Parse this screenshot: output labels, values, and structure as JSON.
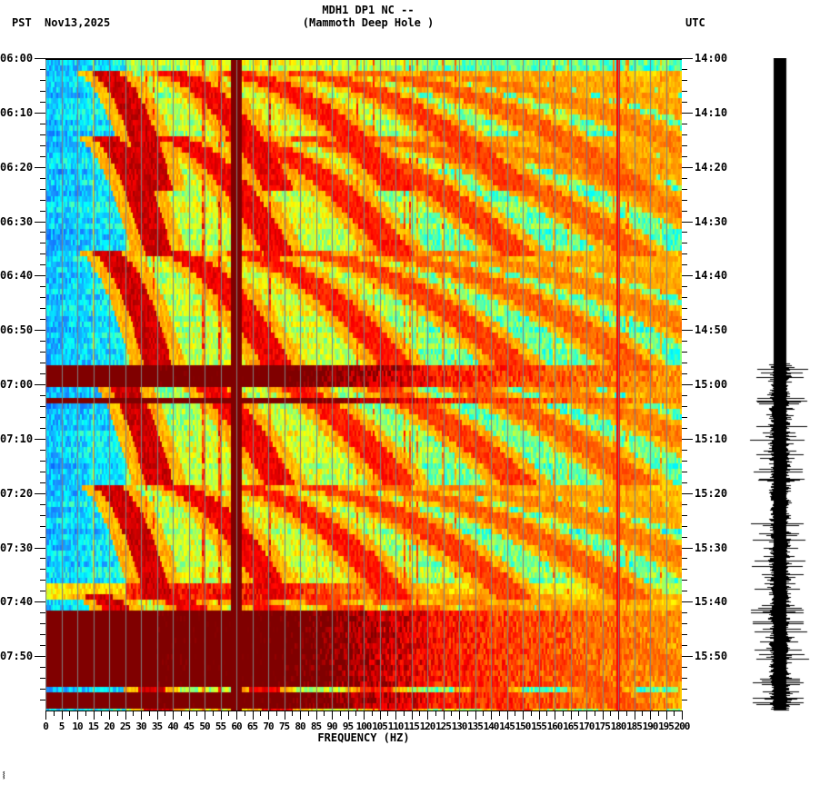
{
  "header": {
    "station_line": "MDH1 DP1 NC --",
    "location_line": "(Mammoth Deep Hole )",
    "left_timezone": "PST",
    "date": "Nov13,2025",
    "right_timezone": "UTC"
  },
  "footer": {
    "corner_mark": "⸾"
  },
  "colors": {
    "background": "#ffffff",
    "axis": "#000000",
    "gridline": "#808080",
    "colormap": [
      "#0050ff",
      "#1a8cff",
      "#00ffff",
      "#80ff80",
      "#ffff00",
      "#ff8000",
      "#ff0000",
      "#800000"
    ]
  },
  "chart_data": {
    "type": "heatmap",
    "title": "MDH1 DP1 NC -- (Mammoth Deep Hole )",
    "subtitle": "Nov13,2025",
    "xlabel": "FREQUENCY (HZ)",
    "ylabel_left": "PST",
    "ylabel_right": "UTC",
    "xlim": [
      0,
      200
    ],
    "x_ticks": [
      0,
      5,
      10,
      15,
      20,
      25,
      30,
      35,
      40,
      45,
      50,
      55,
      60,
      65,
      70,
      75,
      80,
      85,
      90,
      95,
      100,
      105,
      110,
      115,
      120,
      125,
      130,
      135,
      140,
      145,
      150,
      155,
      160,
      165,
      170,
      175,
      180,
      185,
      190,
      195,
      200
    ],
    "y_ticks_left": [
      "06:00",
      "06:10",
      "06:20",
      "06:30",
      "06:40",
      "06:50",
      "07:00",
      "07:10",
      "07:20",
      "07:30",
      "07:40",
      "07:50"
    ],
    "y_ticks_right": [
      "14:00",
      "14:10",
      "14:20",
      "14:30",
      "14:40",
      "14:50",
      "15:00",
      "15:10",
      "15:20",
      "15:30",
      "15:40",
      "15:50"
    ],
    "time_range_pst": [
      "06:00",
      "08:00"
    ],
    "time_range_utc": [
      "14:00",
      "16:00"
    ],
    "grid": true,
    "persistent_lines_hz": [
      60,
      180
    ],
    "broadband_events_pst": [
      {
        "start": "06:56",
        "end": "07:00",
        "level": "high"
      },
      {
        "start": "07:02",
        "end": "07:03",
        "level": "high"
      },
      {
        "start": "07:37",
        "end": "07:40",
        "level": "medium"
      },
      {
        "start": "07:42",
        "end": "07:56",
        "level": "high"
      },
      {
        "start": "07:57",
        "end": "08:00",
        "level": "high"
      }
    ],
    "gliding_tone_sweeps": {
      "description": "Repeating harmonic chirps rising in frequency, ~21 min period",
      "sweep_starts_pst": [
        "06:02",
        "06:14",
        "06:35",
        "06:56",
        "07:18",
        "07:39"
      ],
      "harmonic_count": 10
    },
    "waveform_trace": {
      "position": "right",
      "quiet_until_pst": "06:56",
      "elevated_after_pst": "06:56"
    }
  }
}
